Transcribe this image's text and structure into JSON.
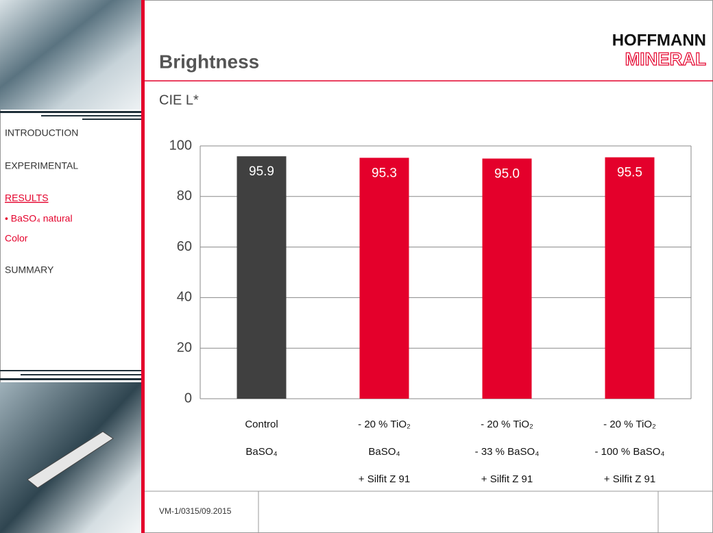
{
  "header": {
    "title": "Brightness",
    "logo": [
      "HOFFMANN",
      "MINERAL"
    ]
  },
  "sidebar": {
    "items": [
      "INTRODUCTION",
      "EXPERIMENTAL",
      "RESULTS",
      "• BaSO₄ natural",
      "Color",
      "SUMMARY"
    ]
  },
  "footer": {
    "code": "VM-1/0315/09.2015"
  },
  "chart_data": {
    "type": "bar",
    "ylabel": "CIE L*",
    "categories": [
      [
        "Control",
        "BaSO₄"
      ],
      [
        "- 20 % TiO₂",
        "BaSO₄",
        "+ Silfit Z 91"
      ],
      [
        "- 20 % TiO₂",
        "- 33 % BaSO₄",
        "+ Silfit Z 91"
      ],
      [
        "- 20 % TiO₂",
        "- 100 % BaSO₄",
        "+ Silfit Z 91"
      ]
    ],
    "values": [
      95.9,
      95.3,
      95.0,
      95.5
    ],
    "value_labels": [
      "95.9",
      "95.3",
      "95.0",
      "95.5"
    ],
    "colors": [
      "#404040",
      "#e4002b",
      "#e4002b",
      "#e4002b"
    ],
    "ylim": [
      0,
      100
    ],
    "yticks": [
      0,
      20,
      40,
      60,
      80,
      100
    ],
    "grid": true
  }
}
